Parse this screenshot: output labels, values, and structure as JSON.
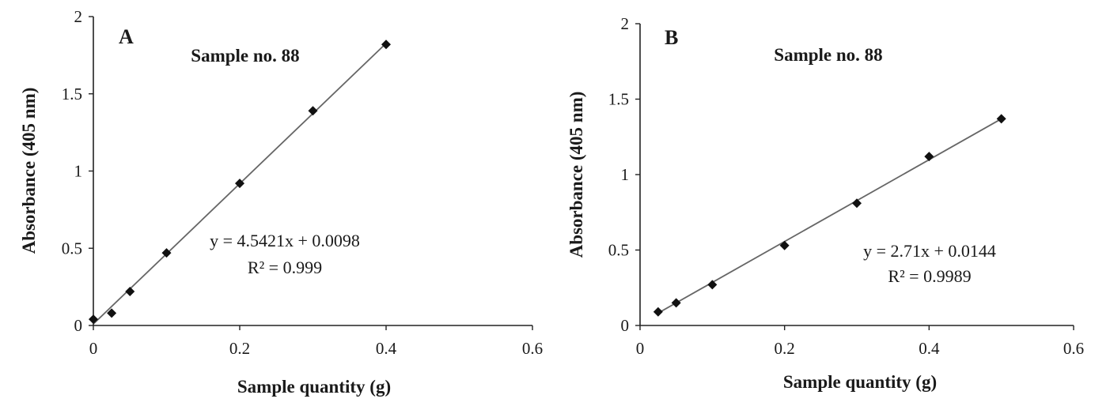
{
  "chart_data": [
    {
      "type": "scatter",
      "panel_label": "A",
      "title": "Sample  no. 88",
      "xlabel": "Sample  quantity  (g)",
      "ylabel": "Absorbance  (405 nm)",
      "xlim": [
        0,
        0.6
      ],
      "ylim": [
        0,
        2
      ],
      "xticks": [
        "0",
        "0.2",
        "0.4",
        "0.6"
      ],
      "yticks": [
        "0",
        "0.5",
        "1",
        "1.5",
        "2"
      ],
      "grid": false,
      "series": [
        {
          "x": [
            0,
            0.025,
            0.05,
            0.1,
            0.2,
            0.3,
            0.4
          ],
          "y": [
            0.04,
            0.08,
            0.22,
            0.47,
            0.92,
            1.39,
            1.82
          ]
        }
      ],
      "trendline": {
        "slope": 4.5421,
        "intercept": 0.0098,
        "x_range": [
          0,
          0.4
        ]
      },
      "equation": "y = 4.5421x  + 0.0098",
      "r_squared": "R² = 0.999"
    },
    {
      "type": "scatter",
      "panel_label": "B",
      "title": "Sample  no. 88",
      "xlabel": "Sample  quantity  (g)",
      "ylabel": "Absorbance  (405 nm)",
      "xlim": [
        0,
        0.6
      ],
      "ylim": [
        0,
        2
      ],
      "xticks": [
        "0",
        "0.2",
        "0.4",
        "0.6"
      ],
      "yticks": [
        "0",
        "0.5",
        "1",
        "1.5",
        "2"
      ],
      "grid": false,
      "series": [
        {
          "x": [
            0.025,
            0.05,
            0.1,
            0.2,
            0.3,
            0.4,
            0.5
          ],
          "y": [
            0.09,
            0.15,
            0.27,
            0.53,
            0.81,
            1.12,
            1.37
          ]
        }
      ],
      "trendline": {
        "slope": 2.71,
        "intercept": 0.0144,
        "x_range": [
          0.025,
          0.5
        ]
      },
      "equation": "y = 2.71x  + 0.0144",
      "r_squared": "R² = 0.9989"
    }
  ]
}
